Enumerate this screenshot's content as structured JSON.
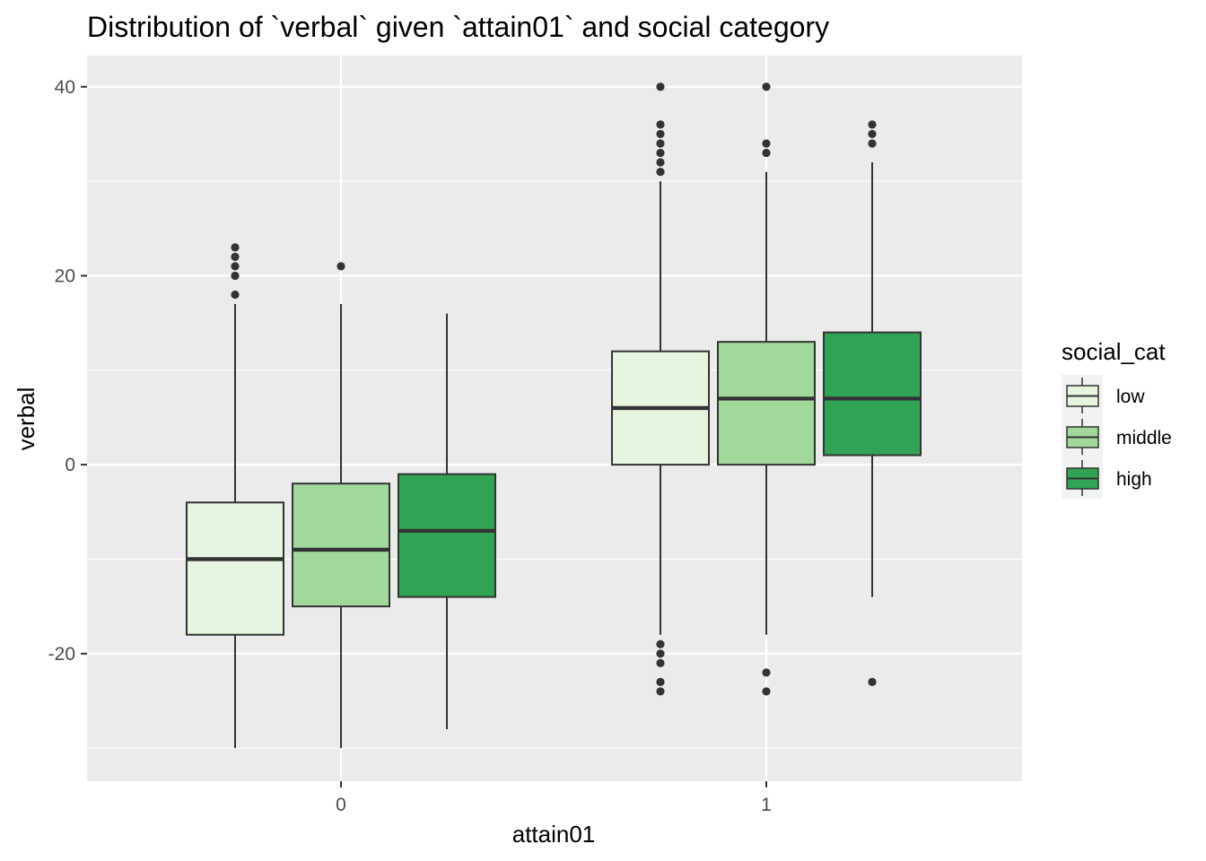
{
  "chart_data": {
    "type": "boxplot",
    "title": "Distribution of `verbal` given `attain01` and social category",
    "xlabel": "attain01",
    "ylabel": "verbal",
    "categories": [
      "0",
      "1"
    ],
    "yticks": [
      -20,
      0,
      20,
      40
    ],
    "ylim": [
      -33.5,
      43.3
    ],
    "grid": true,
    "legend": {
      "title": "social_cat",
      "position": "right",
      "entries": [
        {
          "name": "low",
          "color": "#e5f5e0"
        },
        {
          "name": "middle",
          "color": "#a1d99b"
        },
        {
          "name": "high",
          "color": "#31a354"
        }
      ]
    },
    "series": [
      {
        "name": "low",
        "color": "#e5f5e0",
        "boxes": [
          {
            "category": "0",
            "lower_whisker": -30,
            "q1": -18,
            "median": -10,
            "q3": -4,
            "upper_whisker": 17,
            "outliers": [
              18,
              20,
              21,
              22,
              23
            ]
          },
          {
            "category": "1",
            "lower_whisker": -18,
            "q1": 0,
            "median": 6,
            "q3": 12,
            "upper_whisker": 30,
            "outliers": [
              -24,
              -23,
              -21,
              -20,
              -19,
              31,
              32,
              33,
              34,
              35,
              36,
              40
            ]
          }
        ]
      },
      {
        "name": "middle",
        "color": "#a1d99b",
        "boxes": [
          {
            "category": "0",
            "lower_whisker": -30,
            "q1": -15,
            "median": -9,
            "q3": -2,
            "upper_whisker": 17,
            "outliers": [
              21
            ]
          },
          {
            "category": "1",
            "lower_whisker": -18,
            "q1": 0,
            "median": 7,
            "q3": 13,
            "upper_whisker": 31,
            "outliers": [
              -24,
              -22,
              33,
              34,
              40
            ]
          }
        ]
      },
      {
        "name": "high",
        "color": "#31a354",
        "boxes": [
          {
            "category": "0",
            "lower_whisker": -28,
            "q1": -14,
            "median": -7,
            "q3": -1,
            "upper_whisker": 16,
            "outliers": []
          },
          {
            "category": "1",
            "lower_whisker": -14,
            "q1": 1,
            "median": 7,
            "q3": 14,
            "upper_whisker": 32,
            "outliers": [
              -23,
              34,
              35,
              36
            ]
          }
        ]
      }
    ]
  }
}
